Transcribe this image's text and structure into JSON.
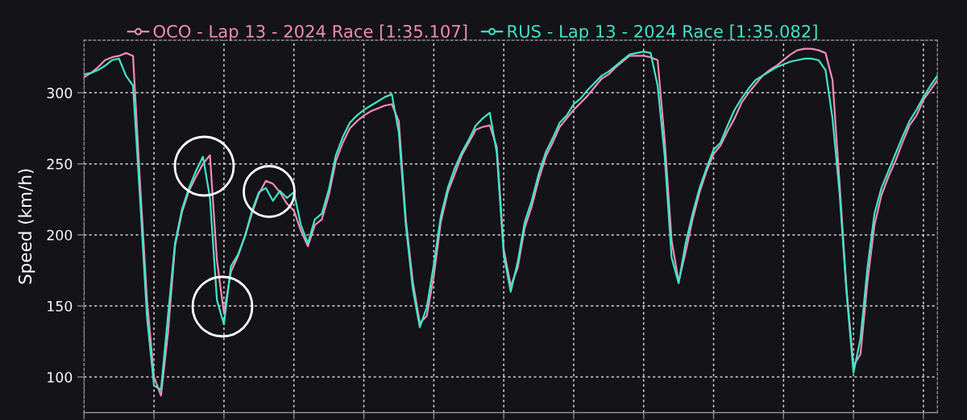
{
  "chart_data": {
    "type": "line",
    "categories": [
      null,
      null,
      null,
      null,
      null,
      null,
      null,
      null,
      null,
      null,
      null,
      null,
      null,
      null,
      null,
      null,
      null,
      null,
      null,
      null,
      null,
      null,
      null,
      null,
      null,
      null,
      null,
      null,
      null,
      null,
      null,
      null,
      null,
      null,
      null,
      null,
      null,
      null,
      null,
      null,
      null,
      null,
      null,
      null,
      null,
      null,
      null,
      null,
      null,
      null,
      null,
      null,
      null,
      null,
      null,
      null,
      null,
      null,
      null,
      null,
      null,
      null,
      null,
      null,
      null,
      null,
      null,
      null,
      null,
      null,
      null,
      null,
      null,
      null,
      null,
      null,
      null,
      null,
      null,
      null,
      null,
      null,
      null,
      null,
      null,
      null,
      null,
      null,
      null,
      null,
      null,
      null,
      null,
      null,
      null,
      null,
      null,
      null,
      null,
      null,
      null,
      null,
      null,
      null,
      null,
      null,
      null,
      null,
      null,
      null,
      null,
      null,
      null,
      null,
      null,
      null,
      null,
      null,
      null,
      null,
      null,
      null,
      null
    ],
    "series": [
      {
        "name": "OCO - Lap 13 - 2024 Race [1:35.107]",
        "color": "#f08cb8",
        "values": [
          311,
          314,
          318,
          323,
          325,
          326,
          328,
          326,
          237,
          154,
          100,
          87,
          131,
          192,
          216,
          231,
          241,
          250,
          256,
          182,
          145,
          174,
          185,
          199,
          215,
          229,
          238,
          236,
          230,
          222,
          217,
          203,
          192,
          207,
          211,
          228,
          252,
          265,
          275,
          280,
          284,
          287,
          289,
          291,
          292,
          280,
          211,
          167,
          138,
          143,
          171,
          209,
          230,
          243,
          256,
          265,
          274,
          276,
          277,
          262,
          190,
          164,
          177,
          205,
          220,
          239,
          255,
          265,
          276,
          282,
          288,
          293,
          298,
          304,
          310,
          313,
          318,
          322,
          326,
          326,
          326,
          325,
          323,
          267,
          196,
          167,
          188,
          211,
          230,
          245,
          257,
          263,
          273,
          282,
          293,
          300,
          306,
          312,
          316,
          319,
          323,
          327,
          330,
          331,
          331,
          330,
          328,
          309,
          237,
          162,
          108,
          116,
          167,
          207,
          228,
          241,
          252,
          265,
          277,
          284,
          295,
          302,
          309
        ]
      },
      {
        "name": "RUS - Lap 13 - 2024 Race [1:35.082]",
        "color": "#3ee6c6",
        "values": [
          313,
          314,
          316,
          319,
          323,
          324,
          312,
          305,
          226,
          142,
          94,
          91,
          143,
          194,
          218,
          233,
          245,
          255,
          226,
          154,
          137,
          178,
          186,
          199,
          217,
          230,
          233,
          224,
          231,
          226,
          230,
          207,
          194,
          211,
          215,
          232,
          256,
          269,
          279,
          284,
          288,
          291,
          294,
          297,
          299,
          272,
          207,
          162,
          135,
          149,
          179,
          213,
          233,
          247,
          258,
          267,
          277,
          282,
          286,
          258,
          186,
          160,
          181,
          209,
          224,
          243,
          258,
          268,
          279,
          284,
          292,
          296,
          302,
          307,
          312,
          315,
          319,
          323,
          327,
          328,
          329,
          328,
          305,
          256,
          184,
          166,
          194,
          215,
          233,
          247,
          260,
          265,
          277,
          288,
          296,
          303,
          309,
          312,
          315,
          318,
          320,
          322,
          323,
          324,
          324,
          323,
          316,
          282,
          230,
          160,
          103,
          127,
          177,
          215,
          233,
          245,
          257,
          269,
          280,
          288,
          297,
          305,
          312
        ]
      }
    ],
    "ylabel": "Speed (km/h)",
    "ylim": [
      75,
      337
    ],
    "yticks": [
      100,
      150,
      200,
      250,
      300
    ],
    "grid": true,
    "legend": "top",
    "line_style": "solid",
    "tick_labels": "y"
  }
}
